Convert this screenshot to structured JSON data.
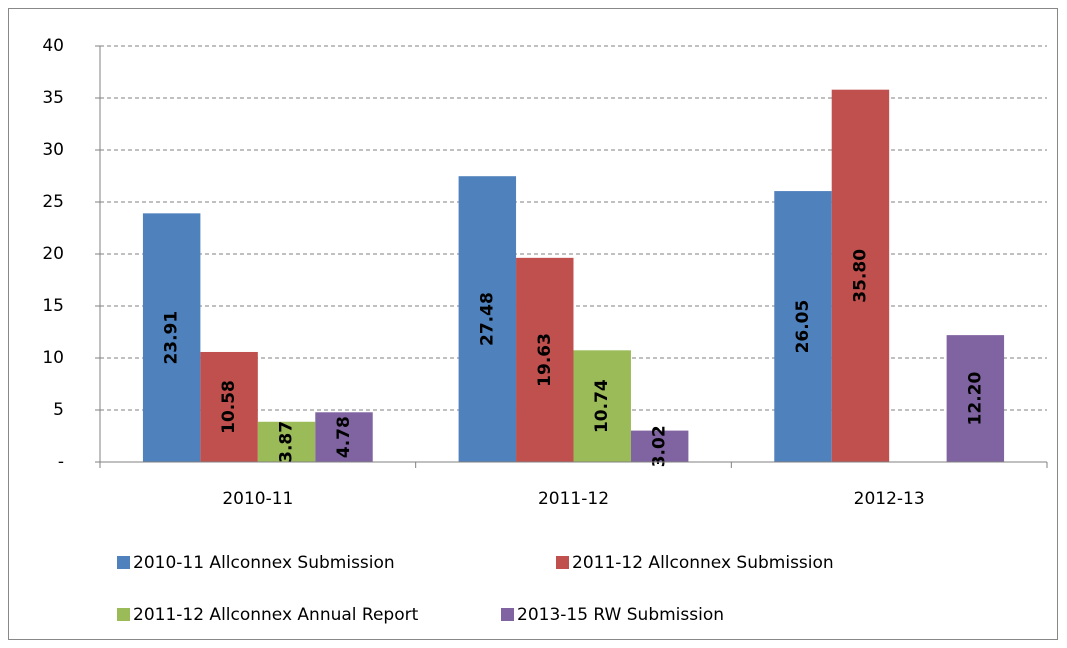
{
  "chart_data": {
    "type": "bar",
    "categories": [
      "2010-11",
      "2011-12",
      "2012-13"
    ],
    "series": [
      {
        "name": "2010-11 Allconnex Submission",
        "color": "#4f81bd",
        "values": [
          23.91,
          27.48,
          26.05
        ],
        "value_labels": [
          "23.91",
          "27.48",
          "26.05"
        ]
      },
      {
        "name": "2011-12 Allconnex Submission",
        "color": "#c0504d",
        "values": [
          10.58,
          19.63,
          35.8
        ],
        "value_labels": [
          "10.58",
          "19.63",
          "35.80"
        ]
      },
      {
        "name": "2011-12 Allconnex Annual Report",
        "color": "#9bbb59",
        "values": [
          3.87,
          10.74,
          null
        ],
        "value_labels": [
          "3.87",
          "10.74",
          null
        ]
      },
      {
        "name": "2013-15 RW Submission",
        "color": "#8064a2",
        "values": [
          4.78,
          3.02,
          12.2
        ],
        "value_labels": [
          "4.78",
          "3.02",
          "12.20"
        ]
      }
    ],
    "ylim": [
      0,
      40
    ],
    "yticks": [
      {
        "value": 0,
        "label": "-"
      },
      5,
      10,
      15,
      20,
      25,
      30,
      35,
      40
    ],
    "grid": true,
    "legend": "bottom"
  }
}
